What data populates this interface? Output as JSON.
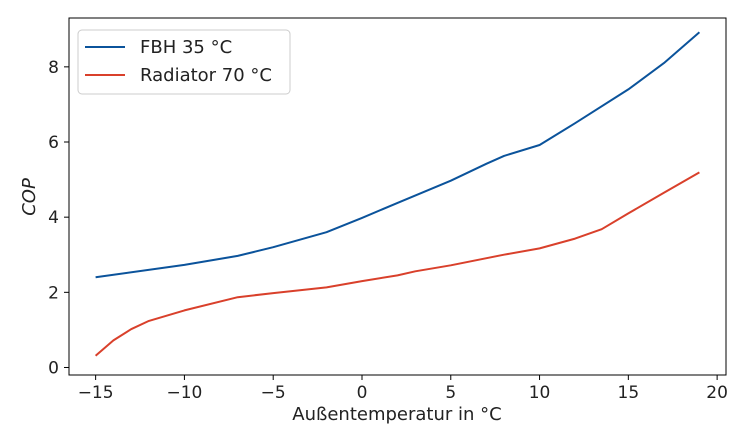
{
  "chart_data": {
    "type": "line",
    "xlabel": "Außentemperatur in °C",
    "ylabel": "COP",
    "xlim": [
      -16.5,
      20.5
    ],
    "ylim": [
      -0.2,
      9.3
    ],
    "xticks": [
      -15,
      -10,
      -5,
      0,
      5,
      10,
      15,
      20
    ],
    "yticks": [
      0,
      2,
      4,
      6,
      8
    ],
    "xtick_labels": [
      "−15",
      "−10",
      "−5",
      "0",
      "5",
      "10",
      "15",
      "20"
    ],
    "ytick_labels": [
      "0",
      "2",
      "4",
      "6",
      "8"
    ],
    "grid": false,
    "legend_position": "top-left",
    "series": [
      {
        "name": "FBH 35 °C",
        "color": "#0b539b",
        "points": [
          [
            -15,
            2.4
          ],
          [
            -10,
            2.73
          ],
          [
            -7,
            2.97
          ],
          [
            -5,
            3.2
          ],
          [
            -2,
            3.6
          ],
          [
            0,
            3.98
          ],
          [
            2,
            4.38
          ],
          [
            5,
            4.97
          ],
          [
            7,
            5.42
          ],
          [
            8,
            5.63
          ],
          [
            10,
            5.92
          ],
          [
            12,
            6.5
          ],
          [
            15,
            7.4
          ],
          [
            17,
            8.1
          ],
          [
            19,
            8.92
          ]
        ]
      },
      {
        "name": "Radiator 70 °C",
        "color": "#d9402b",
        "points": [
          [
            -15,
            0.31
          ],
          [
            -14,
            0.72
          ],
          [
            -13,
            1.02
          ],
          [
            -12,
            1.24
          ],
          [
            -10,
            1.52
          ],
          [
            -7,
            1.87
          ],
          [
            -5,
            1.98
          ],
          [
            -2,
            2.13
          ],
          [
            0,
            2.3
          ],
          [
            2,
            2.45
          ],
          [
            3,
            2.56
          ],
          [
            5,
            2.72
          ],
          [
            8,
            3.0
          ],
          [
            10,
            3.17
          ],
          [
            12,
            3.43
          ],
          [
            13.5,
            3.68
          ],
          [
            15,
            4.1
          ],
          [
            17,
            4.65
          ],
          [
            19,
            5.19
          ]
        ]
      }
    ]
  }
}
